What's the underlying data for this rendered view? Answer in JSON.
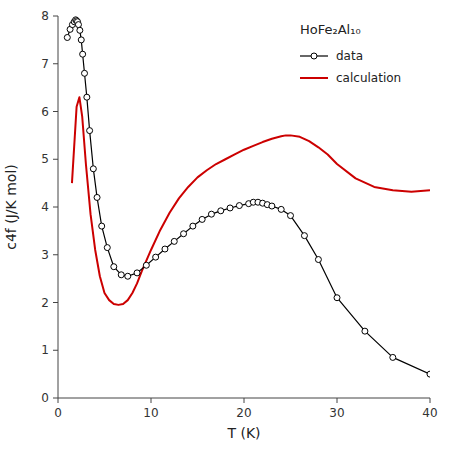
{
  "chart_data": {
    "type": "line",
    "xlabel": "T (K)",
    "ylabel": "c4f (J/K mol)",
    "xlim": [
      0,
      40
    ],
    "ylim": [
      0,
      8
    ],
    "xticks": [
      0,
      10,
      20,
      30,
      40
    ],
    "yticks": [
      0,
      1,
      2,
      3,
      4,
      5,
      6,
      7,
      8
    ],
    "grid": false,
    "legend": "upper right",
    "annotations": [
      {
        "text": "HoFe₂Al₁₀"
      }
    ],
    "series": [
      {
        "name": "data",
        "color": "black",
        "marker": "circle",
        "line_style": "solid",
        "x": [
          1.0,
          1.3,
          1.55,
          1.75,
          1.9,
          2.0,
          2.1,
          2.2,
          2.35,
          2.5,
          2.65,
          2.85,
          3.1,
          3.4,
          3.8,
          4.2,
          4.7,
          5.3,
          6.0,
          6.8,
          7.5,
          8.5,
          9.5,
          10.5,
          11.5,
          12.5,
          13.5,
          14.5,
          15.5,
          16.5,
          17.5,
          18.5,
          19.5,
          20.5,
          21.0,
          21.5,
          22.0,
          22.5,
          23.0,
          24.0,
          25.0,
          26.5,
          28.0,
          30.0,
          33.0,
          36.0,
          40.0
        ],
        "values": [
          7.55,
          7.72,
          7.82,
          7.88,
          7.92,
          7.9,
          7.88,
          7.82,
          7.7,
          7.5,
          7.2,
          6.8,
          6.3,
          5.6,
          4.8,
          4.2,
          3.6,
          3.15,
          2.75,
          2.58,
          2.55,
          2.62,
          2.78,
          2.95,
          3.12,
          3.28,
          3.44,
          3.6,
          3.74,
          3.85,
          3.92,
          3.98,
          4.03,
          4.07,
          4.1,
          4.1,
          4.08,
          4.05,
          4.02,
          3.95,
          3.82,
          3.4,
          2.9,
          2.1,
          1.4,
          0.85,
          0.5
        ]
      },
      {
        "name": "calculation",
        "color": "#cc0000",
        "line_style": "solid",
        "x": [
          1.5,
          2.0,
          2.3,
          2.6,
          3.0,
          3.5,
          4.0,
          4.5,
          5.0,
          5.5,
          6.0,
          6.5,
          7.0,
          7.5,
          8.0,
          8.5,
          9.0,
          10.0,
          11.0,
          12.0,
          13.0,
          14.0,
          15.0,
          16.0,
          17.0,
          18.0,
          19.0,
          20.0,
          21.0,
          22.0,
          23.0,
          24.0,
          24.5,
          25.0,
          26.0,
          27.0,
          28.0,
          29.0,
          30.0,
          32.0,
          34.0,
          36.0,
          38.0,
          40.0
        ],
        "values": [
          4.5,
          6.1,
          6.3,
          5.9,
          4.9,
          3.85,
          3.1,
          2.55,
          2.2,
          2.05,
          1.97,
          1.95,
          1.97,
          2.05,
          2.2,
          2.4,
          2.65,
          3.1,
          3.52,
          3.88,
          4.18,
          4.42,
          4.62,
          4.77,
          4.9,
          5.0,
          5.1,
          5.2,
          5.28,
          5.36,
          5.43,
          5.48,
          5.5,
          5.5,
          5.47,
          5.38,
          5.25,
          5.1,
          4.9,
          4.6,
          4.42,
          4.35,
          4.32,
          4.35
        ]
      }
    ]
  }
}
